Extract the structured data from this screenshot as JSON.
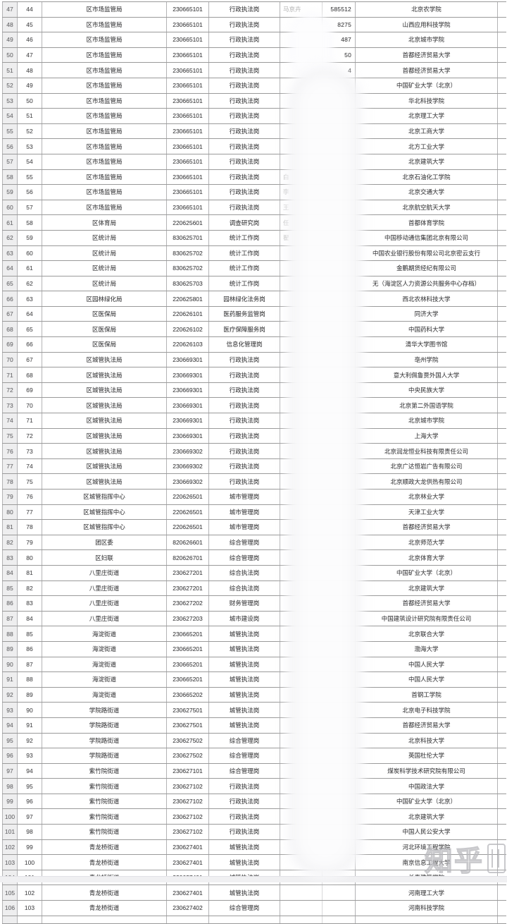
{
  "watermark": {
    "text": "知乎"
  },
  "redaction": {
    "note_color": "#fdfdfe"
  },
  "rows": [
    {
      "no": "47",
      "seq": "44",
      "department": "区市场监管局",
      "code": "230665101",
      "position": "行政执法岗",
      "name_fragment": "马京卉",
      "number_fragment": "585512",
      "school": "北京农学院"
    },
    {
      "no": "48",
      "seq": "45",
      "department": "区市场监管局",
      "code": "230665101",
      "position": "行政执法岗",
      "name_fragment": "",
      "number_fragment": "8275",
      "school": "山西应用科技学院"
    },
    {
      "no": "49",
      "seq": "46",
      "department": "区市场监管局",
      "code": "230665101",
      "position": "行政执法岗",
      "name_fragment": "",
      "number_fragment": "487",
      "school": "北京城市学院"
    },
    {
      "no": "50",
      "seq": "47",
      "department": "区市场监管局",
      "code": "230665101",
      "position": "行政执法岗",
      "name_fragment": "",
      "number_fragment": "50",
      "school": "首都经济贸易大学"
    },
    {
      "no": "51",
      "seq": "48",
      "department": "区市场监管局",
      "code": "230665101",
      "position": "行政执法岗",
      "name_fragment": "",
      "number_fragment": "4",
      "school": "首都经济贸易大学"
    },
    {
      "no": "52",
      "seq": "49",
      "department": "区市场监管局",
      "code": "230665101",
      "position": "行政执法岗",
      "name_fragment": "",
      "number_fragment": "",
      "school": "中国矿业大学（北京）"
    },
    {
      "no": "53",
      "seq": "50",
      "department": "区市场监管局",
      "code": "230665101",
      "position": "行政执法岗",
      "name_fragment": "",
      "number_fragment": "",
      "school": "华北科技学院"
    },
    {
      "no": "54",
      "seq": "51",
      "department": "区市场监管局",
      "code": "230665101",
      "position": "行政执法岗",
      "name_fragment": "",
      "number_fragment": "",
      "school": "北京理工大学"
    },
    {
      "no": "55",
      "seq": "52",
      "department": "区市场监管局",
      "code": "230665101",
      "position": "行政执法岗",
      "name_fragment": "",
      "number_fragment": "",
      "school": "北京工商大学"
    },
    {
      "no": "56",
      "seq": "53",
      "department": "区市场监管局",
      "code": "230665101",
      "position": "行政执法岗",
      "name_fragment": "",
      "number_fragment": "",
      "school": "北方工业大学"
    },
    {
      "no": "57",
      "seq": "54",
      "department": "区市场监管局",
      "code": "230665101",
      "position": "行政执法岗",
      "name_fragment": "",
      "number_fragment": "",
      "school": "北京建筑大学"
    },
    {
      "no": "58",
      "seq": "55",
      "department": "区市场监管局",
      "code": "230665101",
      "position": "行政执法岗",
      "name_fragment": "白",
      "number_fragment": "",
      "school": "北京石油化工学院"
    },
    {
      "no": "59",
      "seq": "56",
      "department": "区市场监管局",
      "code": "230665101",
      "position": "行政执法岗",
      "name_fragment": "李",
      "number_fragment": "",
      "school": "北京交通大学"
    },
    {
      "no": "60",
      "seq": "57",
      "department": "区市场监管局",
      "code": "230665101",
      "position": "行政执法岗",
      "name_fragment": "王",
      "number_fragment": "",
      "school": "北京航空航天大学"
    },
    {
      "no": "61",
      "seq": "58",
      "department": "区体育局",
      "code": "220625601",
      "position": "调查研究岗",
      "name_fragment": "任",
      "number_fragment": "",
      "school": "首都体育学院"
    },
    {
      "no": "62",
      "seq": "59",
      "department": "区统计局",
      "code": "830625701",
      "position": "统计工作岗",
      "name_fragment": "翟",
      "number_fragment": "",
      "school": "中国移动通信集团北京有限公司"
    },
    {
      "no": "63",
      "seq": "60",
      "department": "区统计局",
      "code": "830625702",
      "position": "统计工作岗",
      "name_fragment": "",
      "number_fragment": "",
      "school": "中国农业银行股份有限公司北京密云支行"
    },
    {
      "no": "64",
      "seq": "61",
      "department": "区统计局",
      "code": "830625702",
      "position": "统计工作岗",
      "name_fragment": "",
      "number_fragment": "",
      "school": "金鹏期货经纪有限公司"
    },
    {
      "no": "65",
      "seq": "62",
      "department": "区统计局",
      "code": "830625703",
      "position": "统计工作岗",
      "name_fragment": "",
      "number_fragment": "",
      "school": "无（海淀区人力资源公共服务中心存档）"
    },
    {
      "no": "66",
      "seq": "63",
      "department": "区园林绿化局",
      "code": "220625801",
      "position": "园林绿化法务岗",
      "name_fragment": "",
      "number_fragment": "",
      "school": "西北农林科技大学"
    },
    {
      "no": "67",
      "seq": "64",
      "department": "区医保局",
      "code": "220626101",
      "position": "医药服务监管岗",
      "name_fragment": "",
      "number_fragment": "",
      "school": "同济大学"
    },
    {
      "no": "68",
      "seq": "65",
      "department": "区医保局",
      "code": "220626102",
      "position": "医疗保障服务岗",
      "name_fragment": "",
      "number_fragment": "",
      "school": "中国药科大学"
    },
    {
      "no": "69",
      "seq": "66",
      "department": "区医保局",
      "code": "220626103",
      "position": "信息化管理岗",
      "name_fragment": "",
      "number_fragment": "",
      "school": "清华大学图书馆"
    },
    {
      "no": "70",
      "seq": "67",
      "department": "区城管执法局",
      "code": "230669301",
      "position": "行政执法岗",
      "name_fragment": "",
      "number_fragment": "",
      "school": "亳州学院"
    },
    {
      "no": "71",
      "seq": "68",
      "department": "区城管执法局",
      "code": "230669301",
      "position": "行政执法岗",
      "name_fragment": "",
      "number_fragment": "",
      "school": "意大利佩鲁贾外国人大学"
    },
    {
      "no": "72",
      "seq": "69",
      "department": "区城管执法局",
      "code": "230669301",
      "position": "行政执法岗",
      "name_fragment": "",
      "number_fragment": "",
      "school": "中央民族大学"
    },
    {
      "no": "73",
      "seq": "70",
      "department": "区城管执法局",
      "code": "230669301",
      "position": "行政执法岗",
      "name_fragment": "",
      "number_fragment": "",
      "school": "北京第二外国语学院"
    },
    {
      "no": "74",
      "seq": "71",
      "department": "区城管执法局",
      "code": "230669301",
      "position": "行政执法岗",
      "name_fragment": "",
      "number_fragment": "",
      "school": "北京城市学院"
    },
    {
      "no": "75",
      "seq": "72",
      "department": "区城管执法局",
      "code": "230669301",
      "position": "行政执法岗",
      "name_fragment": "",
      "number_fragment": "",
      "school": "上海大学"
    },
    {
      "no": "76",
      "seq": "73",
      "department": "区城管执法局",
      "code": "230669302",
      "position": "行政执法岗",
      "name_fragment": "",
      "number_fragment": "",
      "school": "北京润龙恒业科技有限责任公司"
    },
    {
      "no": "77",
      "seq": "74",
      "department": "区城管执法局",
      "code": "230669302",
      "position": "行政执法岗",
      "name_fragment": "",
      "number_fragment": "",
      "school": "北京广达恒岩广告有限公司"
    },
    {
      "no": "78",
      "seq": "75",
      "department": "区城管执法局",
      "code": "230669302",
      "position": "行政执法岗",
      "name_fragment": "",
      "number_fragment": "",
      "school": "北京顺政大龙供热有限公司"
    },
    {
      "no": "79",
      "seq": "76",
      "department": "区城管指挥中心",
      "code": "220626501",
      "position": "城市管理岗",
      "name_fragment": "",
      "number_fragment": "",
      "school": "北京林业大学"
    },
    {
      "no": "80",
      "seq": "77",
      "department": "区城管指挥中心",
      "code": "220626501",
      "position": "城市管理岗",
      "name_fragment": "",
      "number_fragment": "",
      "school": "天津工业大学"
    },
    {
      "no": "81",
      "seq": "78",
      "department": "区城管指挥中心",
      "code": "220626501",
      "position": "城市管理岗",
      "name_fragment": "",
      "number_fragment": "",
      "school": "首都经济贸易大学"
    },
    {
      "no": "82",
      "seq": "79",
      "department": "团区委",
      "code": "820626601",
      "position": "综合管理岗",
      "name_fragment": "",
      "number_fragment": "",
      "school": "北京师范大学"
    },
    {
      "no": "83",
      "seq": "80",
      "department": "区妇联",
      "code": "820626701",
      "position": "综合管理岗",
      "name_fragment": "",
      "number_fragment": "",
      "school": "北京体育大学"
    },
    {
      "no": "84",
      "seq": "81",
      "department": "八里庄街道",
      "code": "230627201",
      "position": "综合执法岗",
      "name_fragment": "",
      "number_fragment": "",
      "school": "中国矿业大学（北京）"
    },
    {
      "no": "85",
      "seq": "82",
      "department": "八里庄街道",
      "code": "230627201",
      "position": "综合执法岗",
      "name_fragment": "",
      "number_fragment": "",
      "school": "北京建筑大学"
    },
    {
      "no": "86",
      "seq": "83",
      "department": "八里庄街道",
      "code": "230627202",
      "position": "财务管理岗",
      "name_fragment": "",
      "number_fragment": "",
      "school": "首都经济贸易大学"
    },
    {
      "no": "87",
      "seq": "84",
      "department": "八里庄街道",
      "code": "230627203",
      "position": "城市建设岗",
      "name_fragment": "",
      "number_fragment": "",
      "school": "中国建筑设计研究院有限责任公司"
    },
    {
      "no": "88",
      "seq": "85",
      "department": "海淀街道",
      "code": "230665201",
      "position": "城管执法岗",
      "name_fragment": "",
      "number_fragment": "",
      "school": "北京联合大学"
    },
    {
      "no": "89",
      "seq": "86",
      "department": "海淀街道",
      "code": "230665201",
      "position": "城管执法岗",
      "name_fragment": "",
      "number_fragment": "",
      "school": "渤海大学"
    },
    {
      "no": "90",
      "seq": "87",
      "department": "海淀街道",
      "code": "230665201",
      "position": "城管执法岗",
      "name_fragment": "",
      "number_fragment": "",
      "school": "中国人民大学"
    },
    {
      "no": "91",
      "seq": "88",
      "department": "海淀街道",
      "code": "230665201",
      "position": "城管执法岗",
      "name_fragment": "",
      "number_fragment": "",
      "school": "中国人民大学"
    },
    {
      "no": "92",
      "seq": "89",
      "department": "海淀街道",
      "code": "230665202",
      "position": "城管执法岗",
      "name_fragment": "",
      "number_fragment": "",
      "school": "首钢工学院"
    },
    {
      "no": "93",
      "seq": "90",
      "department": "学院路街道",
      "code": "230627501",
      "position": "城管执法岗",
      "name_fragment": "",
      "number_fragment": "",
      "school": "北京电子科技学院"
    },
    {
      "no": "94",
      "seq": "91",
      "department": "学院路街道",
      "code": "230627501",
      "position": "城管执法岗",
      "name_fragment": "",
      "number_fragment": "",
      "school": "首都经济贸易大学"
    },
    {
      "no": "95",
      "seq": "92",
      "department": "学院路街道",
      "code": "230627502",
      "position": "综合管理岗",
      "name_fragment": "",
      "number_fragment": "",
      "school": "北京科技大学"
    },
    {
      "no": "96",
      "seq": "93",
      "department": "学院路街道",
      "code": "230627502",
      "position": "综合管理岗",
      "name_fragment": "",
      "number_fragment": "",
      "school": "英国杜伦大学"
    },
    {
      "no": "97",
      "seq": "94",
      "department": "紫竹院街道",
      "code": "230627101",
      "position": "综合管理岗",
      "name_fragment": "",
      "number_fragment": "",
      "school": "煤炭科学技术研究院有限公司"
    },
    {
      "no": "98",
      "seq": "95",
      "department": "紫竹院街道",
      "code": "230627102",
      "position": "行政执法岗",
      "name_fragment": "",
      "number_fragment": "",
      "school": "中国政法大学"
    },
    {
      "no": "99",
      "seq": "96",
      "department": "紫竹院街道",
      "code": "230627102",
      "position": "行政执法岗",
      "name_fragment": "",
      "number_fragment": "",
      "school": "中国矿业大学（北京）"
    },
    {
      "no": "100",
      "seq": "97",
      "department": "紫竹院街道",
      "code": "230627102",
      "position": "行政执法岗",
      "name_fragment": "",
      "number_fragment": "",
      "school": "北京建筑大学"
    },
    {
      "no": "101",
      "seq": "98",
      "department": "紫竹院街道",
      "code": "230627102",
      "position": "行政执法岗",
      "name_fragment": "",
      "number_fragment": "",
      "school": "中国人民公安大学"
    },
    {
      "no": "102",
      "seq": "99",
      "department": "青龙桥街道",
      "code": "230627401",
      "position": "城管执法岗",
      "name_fragment": "",
      "number_fragment": "",
      "school": "河北环境工程学院"
    },
    {
      "no": "103",
      "seq": "100",
      "department": "青龙桥街道",
      "code": "230627401",
      "position": "城管执法岗",
      "name_fragment": "",
      "number_fragment": "",
      "school": "南京信息工程大学"
    },
    {
      "no": "104",
      "seq": "101",
      "department": "青龙桥街道",
      "code": "230627401",
      "position": "城管执法岗",
      "name_fragment": "",
      "number_fragment": "",
      "school": "长春建筑学院"
    },
    {
      "no": "105",
      "seq": "102",
      "department": "青龙桥街道",
      "code": "230627401",
      "position": "城管执法岗",
      "name_fragment": "",
      "number_fragment": "",
      "school": "河南理工大学"
    },
    {
      "no": "106",
      "seq": "103",
      "department": "青龙桥街道",
      "code": "230627402",
      "position": "综合管理岗",
      "name_fragment": "",
      "number_fragment": "",
      "school": "河南科技学院"
    }
  ]
}
